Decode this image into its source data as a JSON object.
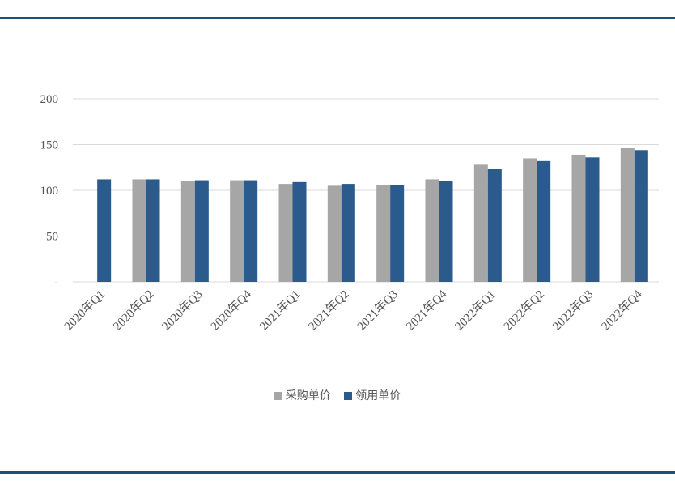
{
  "colors": {
    "rule": "#1f4e79",
    "grid": "#d9d9d9",
    "series_purchase": "#a6a6a6",
    "series_usage": "#2a5b8c"
  },
  "chart_data": {
    "type": "bar",
    "categories": [
      "2020年Q1",
      "2020年Q2",
      "2020年Q3",
      "2020年Q4",
      "2021年Q1",
      "2021年Q2",
      "2021年Q3",
      "2021年Q4",
      "2022年Q1",
      "2022年Q2",
      "2022年Q3",
      "2022年Q4"
    ],
    "series": [
      {
        "name": "采购单价",
        "color": "#a6a6a6",
        "values": [
          null,
          112,
          110,
          111,
          107,
          105,
          106,
          112,
          128,
          135,
          139,
          146
        ]
      },
      {
        "name": "领用单价",
        "color": "#2a5b8c",
        "values": [
          112,
          112,
          111,
          111,
          109,
          107,
          106,
          110,
          123,
          132,
          136,
          144
        ]
      }
    ],
    "yticks": [
      "-",
      "50",
      "100",
      "150",
      "200"
    ],
    "ylim": [
      0,
      200
    ],
    "grid": true,
    "legend": "bottom"
  }
}
